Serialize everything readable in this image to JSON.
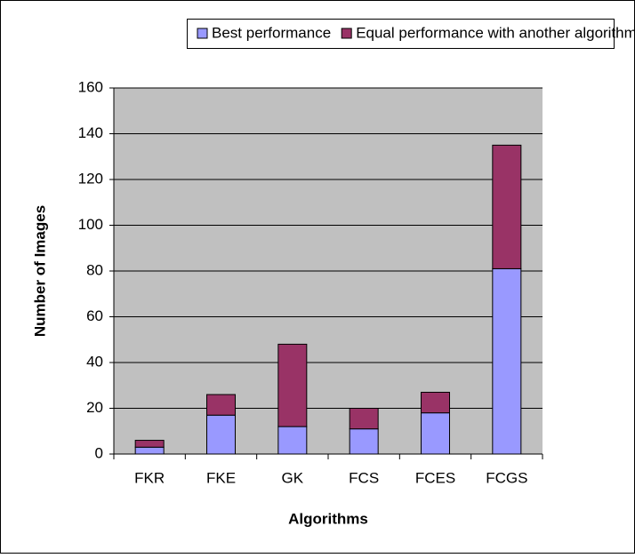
{
  "chart_data": {
    "type": "stacked_bar",
    "categories": [
      "FKR",
      "FKE",
      "GK",
      "FCS",
      "FCES",
      "FCGS"
    ],
    "series": [
      {
        "name": "Best performance",
        "color": "#9999ff",
        "values": [
          3,
          17,
          12,
          11,
          18,
          81
        ]
      },
      {
        "name": "Equal performance with another algorithm",
        "color": "#993366",
        "values": [
          3,
          9,
          36,
          9,
          9,
          54
        ]
      }
    ],
    "xlabel": "Algorithms",
    "ylabel": "Number of Images",
    "ylim": [
      0,
      160
    ],
    "yticks": [
      0,
      20,
      40,
      60,
      80,
      100,
      120,
      140,
      160
    ],
    "grid": true
  }
}
